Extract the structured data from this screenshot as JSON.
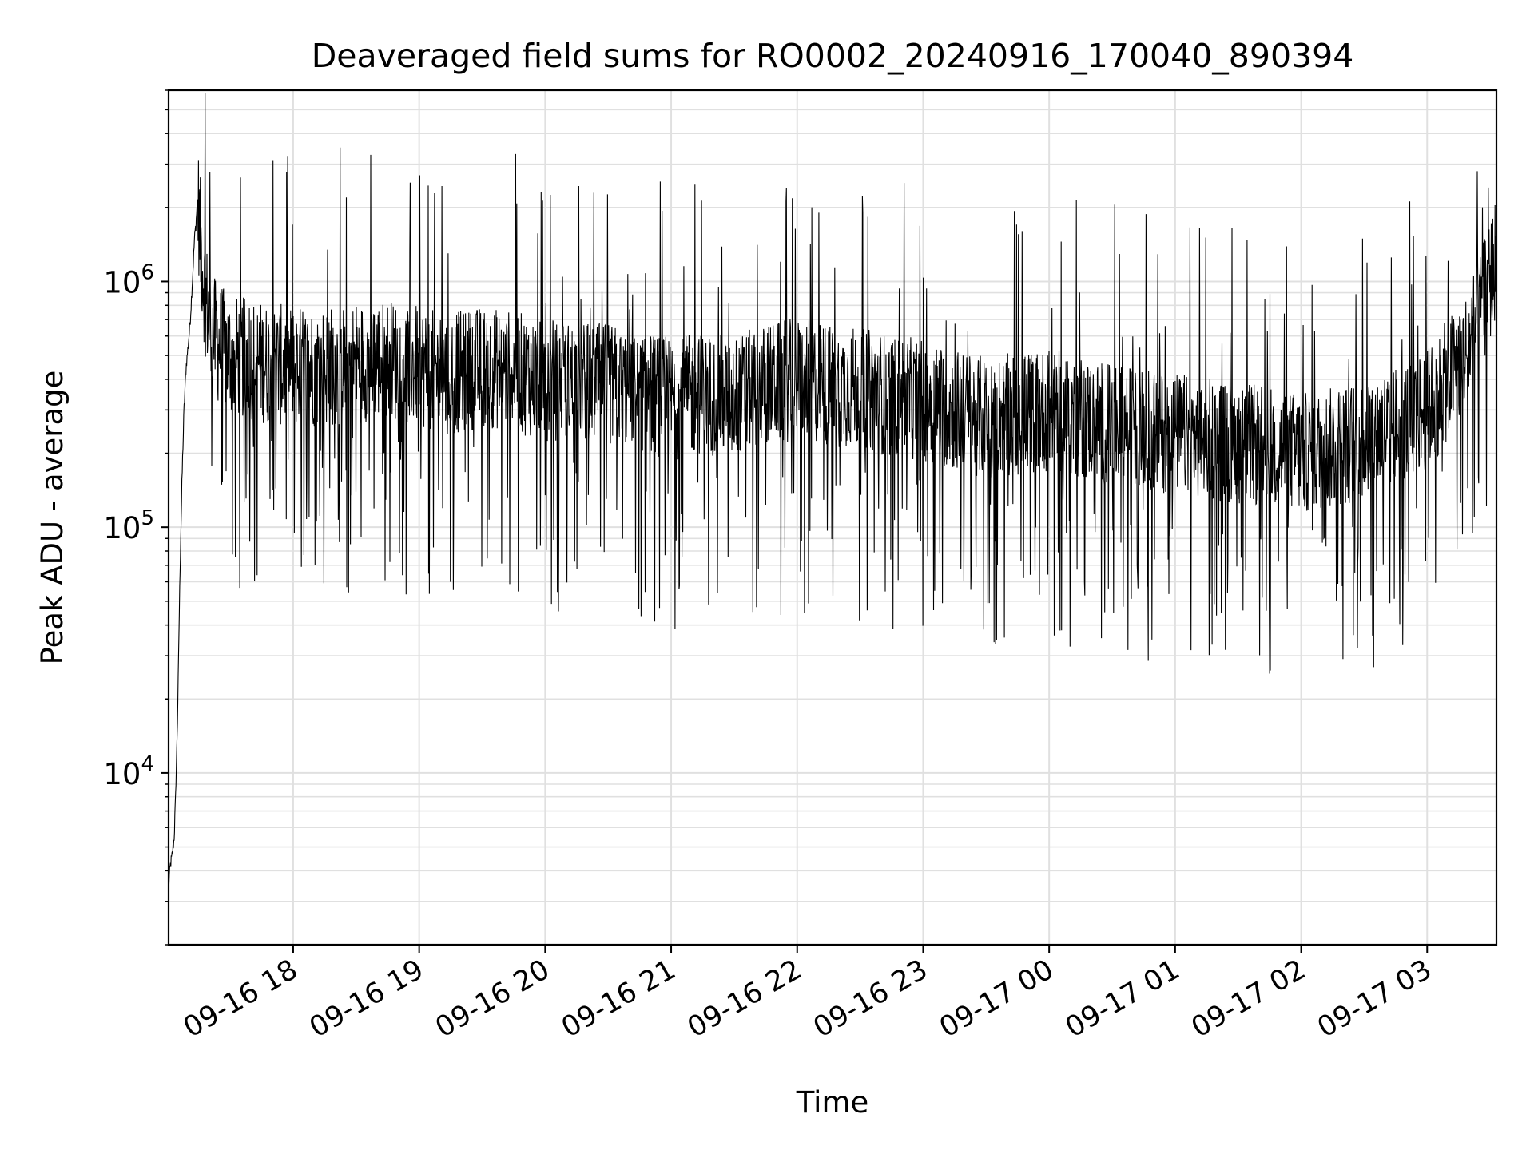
{
  "chart_data": {
    "type": "line",
    "title": "Deaveraged field sums for RO0002_20240916_170040_890394",
    "xlabel": "Time",
    "ylabel": "Peak ADU - average",
    "yscale": "log",
    "ylim": [
      2000,
      6000000
    ],
    "xlim": [
      "2024-09-16T17:00:40",
      "2024-09-17T03:33:00"
    ],
    "grid": true,
    "line_color": "#000000",
    "grid_color": "#e0e0e0",
    "y_ticks": [
      {
        "value": 10000,
        "base": "10",
        "exp": "4"
      },
      {
        "value": 100000,
        "base": "10",
        "exp": "5"
      },
      {
        "value": 1000000,
        "base": "10",
        "exp": "6"
      }
    ],
    "x_ticks": [
      {
        "time": "2024-09-16T18:00",
        "label": "09-16 18"
      },
      {
        "time": "2024-09-16T19:00",
        "label": "09-16 19"
      },
      {
        "time": "2024-09-16T20:00",
        "label": "09-16 20"
      },
      {
        "time": "2024-09-16T21:00",
        "label": "09-16 21"
      },
      {
        "time": "2024-09-16T22:00",
        "label": "09-16 22"
      },
      {
        "time": "2024-09-16T23:00",
        "label": "09-16 23"
      },
      {
        "time": "2024-09-17T00:00",
        "label": "09-17 00"
      },
      {
        "time": "2024-09-17T01:00",
        "label": "09-17 01"
      },
      {
        "time": "2024-09-17T02:00",
        "label": "09-17 02"
      },
      {
        "time": "2024-09-17T03:00",
        "label": "09-17 03"
      }
    ],
    "series": [
      {
        "x": [
          "2024-09-16T17:00:40",
          "2024-09-16T17:01:30",
          "2024-09-16T17:02:30",
          "2024-09-16T17:03:20",
          "2024-09-16T17:04:00",
          "2024-09-16T17:05:00",
          "2024-09-16T17:06:00",
          "2024-09-16T17:07:00",
          "2024-09-16T17:08:00",
          "2024-09-16T17:09:00",
          "2024-09-16T17:10:00",
          "2024-09-16T17:11:00",
          "2024-09-16T17:12:00",
          "2024-09-16T17:13:00",
          "2024-09-16T17:13:40",
          "2024-09-16T17:14:30",
          "2024-09-16T17:16:00",
          "2024-09-16T17:18:00",
          "2024-09-16T17:20:00",
          "2024-09-16T17:22:00",
          "2024-09-16T17:25:00",
          "2024-09-16T17:30:00",
          "2024-09-16T17:40:00",
          "2024-09-16T17:50:00",
          "2024-09-16T18:00:00",
          "2024-09-16T18:15:00",
          "2024-09-16T18:30:00",
          "2024-09-16T18:45:00",
          "2024-09-16T19:00:00",
          "2024-09-16T19:15:00",
          "2024-09-16T19:30:00",
          "2024-09-16T19:45:00",
          "2024-09-16T20:00:00",
          "2024-09-16T20:15:00",
          "2024-09-16T20:30:00",
          "2024-09-16T20:45:00",
          "2024-09-16T21:00:00",
          "2024-09-16T21:15:00",
          "2024-09-16T21:30:00",
          "2024-09-16T21:45:00",
          "2024-09-16T22:00:00",
          "2024-09-16T22:15:00",
          "2024-09-16T22:30:00",
          "2024-09-16T22:45:00",
          "2024-09-16T23:00:00",
          "2024-09-16T23:15:00",
          "2024-09-16T23:30:00",
          "2024-09-16T23:45:00",
          "2024-09-17T00:00:00",
          "2024-09-17T00:15:00",
          "2024-09-17T00:30:00",
          "2024-09-17T00:45:00",
          "2024-09-17T01:00:00",
          "2024-09-17T01:15:00",
          "2024-09-17T01:30:00",
          "2024-09-17T01:45:00",
          "2024-09-17T02:00:00",
          "2024-09-17T02:15:00",
          "2024-09-17T02:30:00",
          "2024-09-17T02:45:00",
          "2024-09-17T03:00:00",
          "2024-09-17T03:10:00",
          "2024-09-17T03:20:00",
          "2024-09-17T03:30:00",
          "2024-09-17T03:33:00"
        ],
        "y": [
          3500,
          4200,
          4700,
          5500,
          8000,
          18000,
          60000,
          150000,
          300000,
          450000,
          550000,
          700000,
          1000000,
          1500000,
          1700000,
          2200000,
          1400000,
          900000,
          700000,
          600000,
          550000,
          500000,
          480000,
          460000,
          450000,
          450000,
          470000,
          480000,
          450000,
          420000,
          450000,
          430000,
          400000,
          390000,
          380000,
          360000,
          330000,
          350000,
          340000,
          380000,
          400000,
          380000,
          370000,
          340000,
          330000,
          300000,
          280000,
          290000,
          300000,
          280000,
          260000,
          250000,
          240000,
          230000,
          220000,
          210000,
          200000,
          210000,
          230000,
          260000,
          300000,
          400000,
          550000,
          1000000,
          1300000
        ],
        "noise_amplitude_decades": 0.55
      }
    ]
  }
}
